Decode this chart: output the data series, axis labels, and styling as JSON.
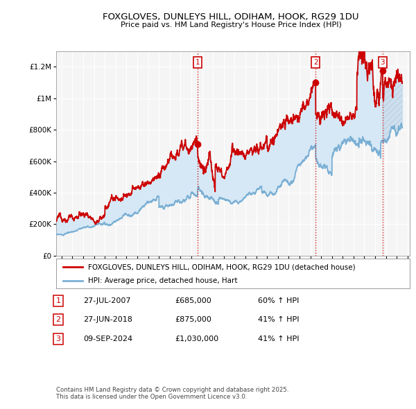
{
  "title": "FOXGLOVES, DUNLEYS HILL, ODIHAM, HOOK, RG29 1DU",
  "subtitle": "Price paid vs. HM Land Registry's House Price Index (HPI)",
  "legend_label_red": "FOXGLOVES, DUNLEYS HILL, ODIHAM, HOOK, RG29 1DU (detached house)",
  "legend_label_blue": "HPI: Average price, detached house, Hart",
  "footnote": "Contains HM Land Registry data © Crown copyright and database right 2025.\nThis data is licensed under the Open Government Licence v3.0.",
  "transactions": [
    {
      "num": 1,
      "date": "27-JUL-2007",
      "price": "£685,000",
      "hpi_change": "60% ↑ HPI",
      "x": 2007.57
    },
    {
      "num": 2,
      "date": "27-JUN-2018",
      "price": "£875,000",
      "hpi_change": "41% ↑ HPI",
      "x": 2018.49
    },
    {
      "num": 3,
      "date": "09-SEP-2024",
      "price": "£1,030,000",
      "hpi_change": "41% ↑ HPI",
      "x": 2024.69
    }
  ],
  "red_color": "#cc0000",
  "blue_color": "#7aafd4",
  "fill_color": "#d6e8f5",
  "hatch_color": "#c8d8e8",
  "background_color": "#ffffff",
  "plot_bg_color": "#f5f5f5",
  "grid_color": "#ffffff",
  "ylim": [
    0,
    1300000
  ],
  "xlim_start": 1994.5,
  "xlim_end": 2027.2,
  "y_ticks": [
    0,
    200000,
    400000,
    600000,
    800000,
    1000000,
    1200000
  ],
  "x_ticks_start": 1995,
  "x_ticks_end": 2027
}
